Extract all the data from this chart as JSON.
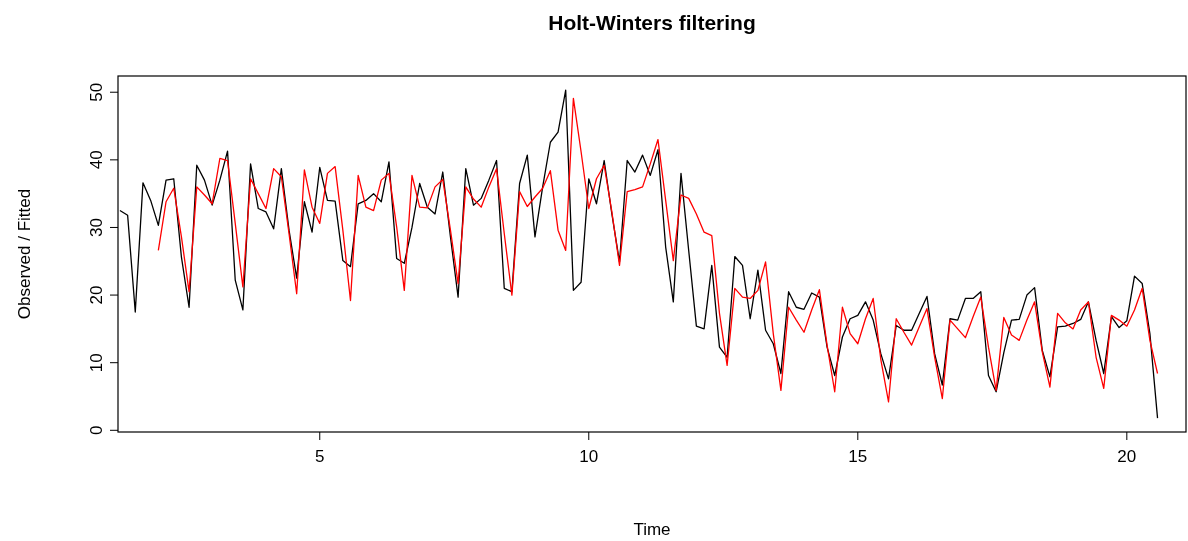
{
  "chart_data": {
    "type": "line",
    "title": "Holt-Winters filtering",
    "xlabel": "Time",
    "ylabel": "Observed / Fitted",
    "x": [
      1.286,
      1.429,
      1.571,
      1.714,
      1.857,
      2,
      2.143,
      2.286,
      2.429,
      2.571,
      2.714,
      2.857,
      3,
      3.143,
      3.286,
      3.429,
      3.571,
      3.714,
      3.857,
      4,
      4.143,
      4.286,
      4.429,
      4.571,
      4.714,
      4.857,
      5,
      5.143,
      5.286,
      5.429,
      5.571,
      5.714,
      5.857,
      6,
      6.143,
      6.286,
      6.429,
      6.571,
      6.714,
      6.857,
      7,
      7.143,
      7.286,
      7.429,
      7.571,
      7.714,
      7.857,
      8,
      8.143,
      8.286,
      8.429,
      8.571,
      8.714,
      8.857,
      9,
      9.143,
      9.286,
      9.429,
      9.571,
      9.714,
      9.857,
      10,
      10.143,
      10.286,
      10.429,
      10.571,
      10.714,
      10.857,
      11,
      11.143,
      11.286,
      11.429,
      11.571,
      11.714,
      11.857,
      12,
      12.143,
      12.286,
      12.429,
      12.571,
      12.714,
      12.857,
      13,
      13.143,
      13.286,
      13.429,
      13.571,
      13.714,
      13.857,
      14,
      14.143,
      14.286,
      14.429,
      14.571,
      14.714,
      14.857,
      15,
      15.143,
      15.286,
      15.429,
      15.571,
      15.714,
      15.857,
      16,
      16.143,
      16.286,
      16.429,
      16.571,
      16.714,
      16.857,
      17,
      17.143,
      17.286,
      17.429,
      17.571,
      17.714,
      17.857,
      18,
      18.143,
      18.286,
      18.429,
      18.571,
      18.714,
      18.857,
      19,
      19.143,
      19.286,
      19.429,
      19.571,
      19.714,
      19.857,
      20,
      20.143,
      20.286,
      20.429,
      20.571
    ],
    "series": [
      {
        "color": "#000000",
        "values": [
          32.5,
          31.8,
          17.5,
          36.6,
          34,
          30.3,
          37,
          37.2,
          25.6,
          18.2,
          39.2,
          37,
          33.3,
          37,
          41.3,
          22.2,
          17.8,
          39.4,
          32.8,
          32.3,
          29.8,
          38.7,
          29.6,
          22.5,
          33.8,
          29.3,
          38.9,
          34,
          33.9,
          25.1,
          24.2,
          33.5,
          34,
          35,
          33.8,
          39.7,
          25.4,
          24.7,
          30,
          36.5,
          33,
          32,
          38.2,
          28.6,
          19.7,
          38.7,
          33.3,
          34.3,
          37,
          39.9,
          21,
          20.5,
          36.5,
          40.7,
          28.6,
          36,
          42.6,
          44.1,
          50.3,
          20.7,
          21.9,
          37.2,
          33.5,
          39.9,
          32,
          24.9,
          39.9,
          38.2,
          40.7,
          37.7,
          41.5,
          27.1,
          19,
          38,
          26.6,
          15.4,
          15,
          24.4,
          12.3,
          10.8,
          25.7,
          24.4,
          16.5,
          23.7,
          14.8,
          12.8,
          8.4,
          20.5,
          18.2,
          17.9,
          20.3,
          19.7,
          12.3,
          8.1,
          13.8,
          16.5,
          17,
          19,
          16.3,
          11.3,
          7.6,
          15.5,
          14.8,
          14.8,
          17.3,
          19.8,
          11.3,
          6.7,
          16.5,
          16.3,
          19.5,
          19.5,
          20.5,
          8.1,
          5.7,
          11.5,
          16.3,
          16.4,
          20,
          21.1,
          11.8,
          7.9,
          15.3,
          15.4,
          15.8,
          16.4,
          19,
          13.3,
          8.4,
          16.8,
          15.2,
          16.2,
          22.8,
          21.7,
          14.3,
          1.8
        ]
      },
      {
        "color": "#ff0000",
        "values": [
          null,
          null,
          null,
          null,
          null,
          26.6,
          33.8,
          35.8,
          28.6,
          20.5,
          36,
          34.8,
          33.5,
          40.2,
          39.9,
          30.6,
          21.2,
          37.2,
          35,
          32.8,
          38.7,
          37.5,
          29.1,
          20.2,
          38.5,
          33,
          30.6,
          38,
          39,
          29.6,
          19.2,
          37.7,
          33,
          32.5,
          37,
          38,
          30.1,
          20.7,
          37.7,
          33,
          32.9,
          36,
          37.1,
          29.6,
          21.7,
          36,
          34.2,
          33,
          36,
          38.7,
          29.1,
          20,
          35.3,
          33.1,
          34.5,
          35.8,
          38.4,
          29.6,
          26.6,
          49.1,
          41.2,
          32.8,
          37.2,
          39.2,
          32.3,
          24.4,
          35.3,
          35.6,
          36,
          39.4,
          43,
          34,
          25.1,
          34.8,
          34.3,
          32,
          29.3,
          28.8,
          17.3,
          9.6,
          21,
          19.7,
          19.5,
          20.7,
          24.9,
          14.3,
          5.9,
          18.2,
          16.3,
          14.5,
          17.8,
          20.8,
          12.6,
          5.7,
          18.2,
          14.3,
          12.8,
          16.5,
          19.5,
          10.4,
          4.2,
          16.5,
          14.5,
          12.6,
          15.3,
          18,
          10.8,
          4.7,
          16.3,
          15,
          13.7,
          16.8,
          19.7,
          12.3,
          5.9,
          16.7,
          14.1,
          13.3,
          16.3,
          19,
          11.6,
          6.4,
          17.3,
          15.9,
          15,
          17.8,
          19,
          10.8,
          6.2,
          17,
          16.3,
          15.4,
          17.8,
          21,
          13.3,
          8.4
        ]
      }
    ],
    "xlim": [
      1.25,
      21.1
    ],
    "ylim": [
      -0.25,
      52.4
    ],
    "xticks": [
      5,
      10,
      15,
      20
    ],
    "yticks": [
      0,
      10,
      20,
      30,
      40,
      50
    ],
    "grid": false,
    "marker": "none",
    "line_style": "solid"
  }
}
